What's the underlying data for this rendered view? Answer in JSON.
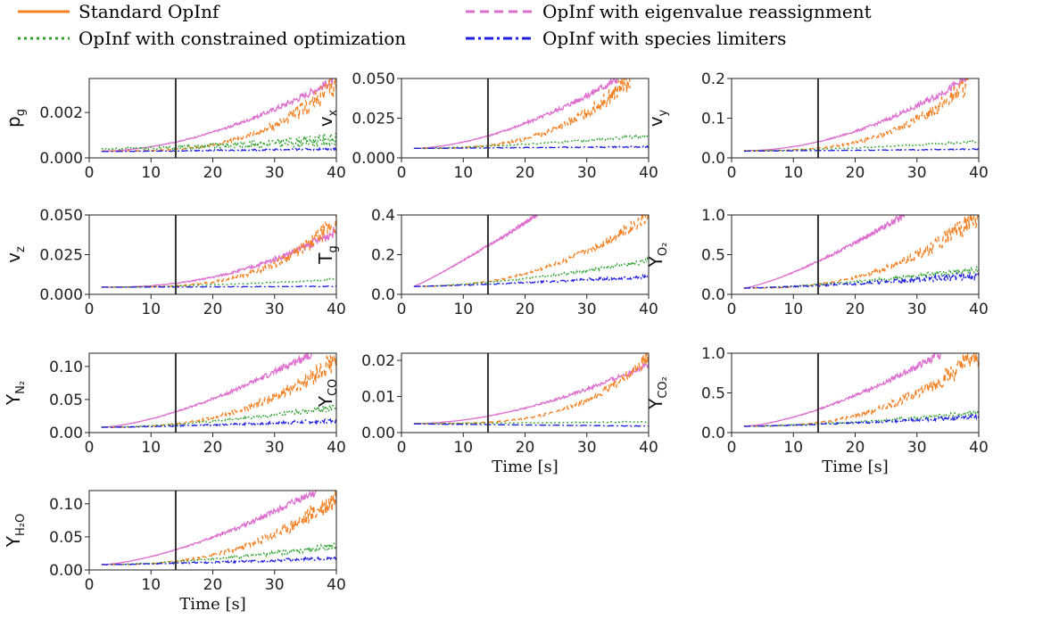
{
  "legend": {
    "entries": [
      {
        "label": "Standard OpInf",
        "color": "#f47f20",
        "dash": "solid"
      },
      {
        "label": "OpInf with eigenvalue reassignment",
        "color": "#dd6ecf",
        "dash": "dashed"
      },
      {
        "label": "OpInf with constrained optimization",
        "color": "#2ca02c",
        "dash": "dotted"
      },
      {
        "label": "OpInf with species limiters",
        "color": "#1f1fe0",
        "dash": "dashdot"
      }
    ]
  },
  "chart_data": [
    {
      "type": "line",
      "ylabel": "p",
      "ylabel_sub": "g",
      "ylim": [
        0,
        0.0035
      ],
      "yticks": [
        "0.000",
        "0.002"
      ],
      "ytick_values": [
        0,
        0.002
      ],
      "xlim": [
        0,
        40
      ],
      "xticks": [
        "0",
        "10",
        "20",
        "30",
        "40"
      ],
      "xlabel": "",
      "vline_x": 14,
      "series": [
        {
          "color": "#dd6ecf",
          "start": 0.0003,
          "end": 0.0035,
          "shape": 1.8,
          "noise": 0.05,
          "endx": 40
        },
        {
          "color": "#f47f20",
          "start": 0.0003,
          "end": 0.0033,
          "shape": 3.2,
          "noise": 0.14,
          "endx": 40
        },
        {
          "color": "#2ca02c",
          "start": 0.0004,
          "end": 0.0008,
          "shape": 1.5,
          "noise": 0.3,
          "endx": 40
        },
        {
          "color": "#1f1fe0",
          "start": 0.00028,
          "end": 0.0004,
          "shape": 1.2,
          "noise": 0.1,
          "endx": 40
        }
      ]
    },
    {
      "type": "line",
      "ylabel": "v",
      "ylabel_sub": "x",
      "ylim": [
        0,
        0.05
      ],
      "yticks": [
        "0.000",
        "0.025",
        "0.050"
      ],
      "ytick_values": [
        0,
        0.025,
        0.05
      ],
      "xlim": [
        0,
        40
      ],
      "xticks": [
        "0",
        "10",
        "20",
        "30",
        "40"
      ],
      "xlabel": "",
      "vline_x": 14,
      "series": [
        {
          "color": "#dd6ecf",
          "start": 0.006,
          "end": 0.05,
          "shape": 1.7,
          "noise": 0.05,
          "endx": 35
        },
        {
          "color": "#f47f20",
          "start": 0.006,
          "end": 0.05,
          "shape": 3.0,
          "noise": 0.12,
          "endx": 37
        },
        {
          "color": "#2ca02c",
          "start": 0.006,
          "end": 0.014,
          "shape": 1.5,
          "noise": 0.06,
          "endx": 40
        },
        {
          "color": "#1f1fe0",
          "start": 0.006,
          "end": 0.007,
          "shape": 1.1,
          "noise": 0.05,
          "endx": 40
        }
      ]
    },
    {
      "type": "line",
      "ylabel": "v",
      "ylabel_sub": "y",
      "ylim": [
        0,
        0.2
      ],
      "yticks": [
        "0.0",
        "0.1",
        "0.2"
      ],
      "ytick_values": [
        0,
        0.1,
        0.2
      ],
      "xlim": [
        0,
        40
      ],
      "xticks": [
        "0",
        "10",
        "20",
        "30",
        "40"
      ],
      "xlabel": "",
      "vline_x": 14,
      "series": [
        {
          "color": "#dd6ecf",
          "start": 0.018,
          "end": 0.2,
          "shape": 1.9,
          "noise": 0.05,
          "endx": 38
        },
        {
          "color": "#f47f20",
          "start": 0.018,
          "end": 0.2,
          "shape": 3.0,
          "noise": 0.12,
          "endx": 39
        },
        {
          "color": "#2ca02c",
          "start": 0.018,
          "end": 0.042,
          "shape": 1.6,
          "noise": 0.06,
          "endx": 40
        },
        {
          "color": "#1f1fe0",
          "start": 0.017,
          "end": 0.022,
          "shape": 1.1,
          "noise": 0.05,
          "endx": 40
        }
      ]
    },
    {
      "type": "line",
      "ylabel": "v",
      "ylabel_sub": "z",
      "ylim": [
        0,
        0.05
      ],
      "yticks": [
        "0.000",
        "0.025",
        "0.050"
      ],
      "ytick_values": [
        0,
        0.025,
        0.05
      ],
      "xlim": [
        0,
        40
      ],
      "xticks": [
        "0",
        "10",
        "20",
        "30",
        "40"
      ],
      "xlabel": "",
      "vline_x": 14,
      "series": [
        {
          "color": "#dd6ecf",
          "start": 0.0045,
          "end": 0.04,
          "shape": 2.3,
          "noise": 0.07,
          "endx": 40
        },
        {
          "color": "#f47f20",
          "start": 0.0045,
          "end": 0.046,
          "shape": 3.4,
          "noise": 0.12,
          "endx": 40
        },
        {
          "color": "#2ca02c",
          "start": 0.0045,
          "end": 0.0095,
          "shape": 1.6,
          "noise": 0.05,
          "endx": 40
        },
        {
          "color": "#1f1fe0",
          "start": 0.0045,
          "end": 0.005,
          "shape": 1.1,
          "noise": 0.04,
          "endx": 40
        }
      ]
    },
    {
      "type": "line",
      "ylabel": "T",
      "ylabel_sub": "g",
      "ylim": [
        0,
        0.4
      ],
      "yticks": [
        "0.0",
        "0.2",
        "0.4"
      ],
      "ytick_values": [
        0,
        0.2,
        0.4
      ],
      "xlim": [
        0,
        40
      ],
      "xticks": [
        "0",
        "10",
        "20",
        "30",
        "40"
      ],
      "xlabel": "",
      "vline_x": 14,
      "series": [
        {
          "color": "#dd6ecf",
          "start": 0.04,
          "end": 0.4,
          "shape": 1.1,
          "noise": 0.04,
          "endx": 22
        },
        {
          "color": "#f47f20",
          "start": 0.04,
          "end": 0.4,
          "shape": 2.3,
          "noise": 0.08,
          "endx": 40
        },
        {
          "color": "#2ca02c",
          "start": 0.04,
          "end": 0.17,
          "shape": 1.6,
          "noise": 0.07,
          "endx": 40
        },
        {
          "color": "#1f1fe0",
          "start": 0.04,
          "end": 0.09,
          "shape": 1.3,
          "noise": 0.09,
          "endx": 40
        }
      ]
    },
    {
      "type": "line",
      "ylabel": "Y",
      "ylabel_sub": "O₂",
      "ylim": [
        0,
        1.0
      ],
      "yticks": [
        "0.0",
        "0.5",
        "1.0"
      ],
      "ytick_values": [
        0,
        0.5,
        1.0
      ],
      "xlim": [
        0,
        40
      ],
      "xticks": [
        "0",
        "10",
        "20",
        "30",
        "40"
      ],
      "xlabel": "",
      "vline_x": 14,
      "series": [
        {
          "color": "#dd6ecf",
          "start": 0.08,
          "end": 1.0,
          "shape": 1.3,
          "noise": 0.05,
          "endx": 28
        },
        {
          "color": "#f47f20",
          "start": 0.08,
          "end": 1.0,
          "shape": 2.6,
          "noise": 0.13,
          "endx": 40
        },
        {
          "color": "#2ca02c",
          "start": 0.08,
          "end": 0.32,
          "shape": 1.5,
          "noise": 0.12,
          "endx": 40
        },
        {
          "color": "#1f1fe0",
          "start": 0.08,
          "end": 0.24,
          "shape": 1.4,
          "noise": 0.18,
          "endx": 40
        }
      ]
    },
    {
      "type": "line",
      "ylabel": "Y",
      "ylabel_sub": "N₂",
      "ylim": [
        0,
        0.12
      ],
      "yticks": [
        "0.00",
        "0.05",
        "0.10"
      ],
      "ytick_values": [
        0,
        0.05,
        0.1
      ],
      "xlim": [
        0,
        40
      ],
      "xticks": [
        "0",
        "10",
        "20",
        "30",
        "40"
      ],
      "xlabel": "",
      "vline_x": 14,
      "series": [
        {
          "color": "#dd6ecf",
          "start": 0.008,
          "end": 0.12,
          "shape": 1.5,
          "noise": 0.05,
          "endx": 36
        },
        {
          "color": "#f47f20",
          "start": 0.008,
          "end": 0.11,
          "shape": 2.6,
          "noise": 0.14,
          "endx": 40
        },
        {
          "color": "#2ca02c",
          "start": 0.008,
          "end": 0.038,
          "shape": 1.6,
          "noise": 0.12,
          "endx": 40
        },
        {
          "color": "#1f1fe0",
          "start": 0.008,
          "end": 0.018,
          "shape": 1.4,
          "noise": 0.15,
          "endx": 40
        }
      ]
    },
    {
      "type": "line",
      "ylabel": "Y",
      "ylabel_sub": "CO",
      "ylim": [
        0,
        0.022
      ],
      "yticks": [
        "0.00",
        "0.01",
        "0.02"
      ],
      "ytick_values": [
        0,
        0.01,
        0.02
      ],
      "xlim": [
        0,
        40
      ],
      "xticks": [
        "0",
        "10",
        "20",
        "30",
        "40"
      ],
      "xlabel": "Time [s]",
      "vline_x": 14,
      "series": [
        {
          "color": "#dd6ecf",
          "start": 0.0025,
          "end": 0.019,
          "shape": 1.8,
          "noise": 0.04,
          "endx": 40
        },
        {
          "color": "#f47f20",
          "start": 0.0025,
          "end": 0.021,
          "shape": 3.4,
          "noise": 0.08,
          "endx": 40
        },
        {
          "color": "#2ca02c",
          "start": 0.0025,
          "end": 0.003,
          "shape": 1.3,
          "noise": 0.05,
          "endx": 40
        },
        {
          "color": "#1f1fe0",
          "start": 0.0024,
          "end": 0.0018,
          "shape": 1.0,
          "noise": 0.04,
          "endx": 40
        }
      ]
    },
    {
      "type": "line",
      "ylabel": "Y",
      "ylabel_sub": "CO₂",
      "ylim": [
        0,
        1.0
      ],
      "yticks": [
        "0.0",
        "0.5",
        "1.0"
      ],
      "ytick_values": [
        0,
        0.5,
        1.0
      ],
      "xlim": [
        0,
        40
      ],
      "xticks": [
        "0",
        "10",
        "20",
        "30",
        "40"
      ],
      "xlabel": "Time [s]",
      "vline_x": 14,
      "series": [
        {
          "color": "#dd6ecf",
          "start": 0.08,
          "end": 1.0,
          "shape": 1.5,
          "noise": 0.05,
          "endx": 34
        },
        {
          "color": "#f47f20",
          "start": 0.08,
          "end": 1.0,
          "shape": 2.6,
          "noise": 0.14,
          "endx": 40
        },
        {
          "color": "#2ca02c",
          "start": 0.08,
          "end": 0.25,
          "shape": 1.5,
          "noise": 0.1,
          "endx": 40
        },
        {
          "color": "#1f1fe0",
          "start": 0.08,
          "end": 0.2,
          "shape": 1.4,
          "noise": 0.12,
          "endx": 40
        }
      ]
    },
    {
      "type": "line",
      "ylabel": "Y",
      "ylabel_sub": "H₂O",
      "ylim": [
        0,
        0.12
      ],
      "yticks": [
        "0.00",
        "0.05",
        "0.10"
      ],
      "ytick_values": [
        0,
        0.05,
        0.1
      ],
      "xlim": [
        0,
        40
      ],
      "xticks": [
        "0",
        "10",
        "20",
        "30",
        "40"
      ],
      "xlabel": "Time [s]",
      "vline_x": 14,
      "series": [
        {
          "color": "#dd6ecf",
          "start": 0.008,
          "end": 0.12,
          "shape": 1.5,
          "noise": 0.05,
          "endx": 37
        },
        {
          "color": "#f47f20",
          "start": 0.008,
          "end": 0.11,
          "shape": 2.6,
          "noise": 0.14,
          "endx": 40
        },
        {
          "color": "#2ca02c",
          "start": 0.008,
          "end": 0.036,
          "shape": 1.6,
          "noise": 0.12,
          "endx": 40
        },
        {
          "color": "#1f1fe0",
          "start": 0.008,
          "end": 0.018,
          "shape": 1.4,
          "noise": 0.14,
          "endx": 40
        }
      ]
    }
  ]
}
